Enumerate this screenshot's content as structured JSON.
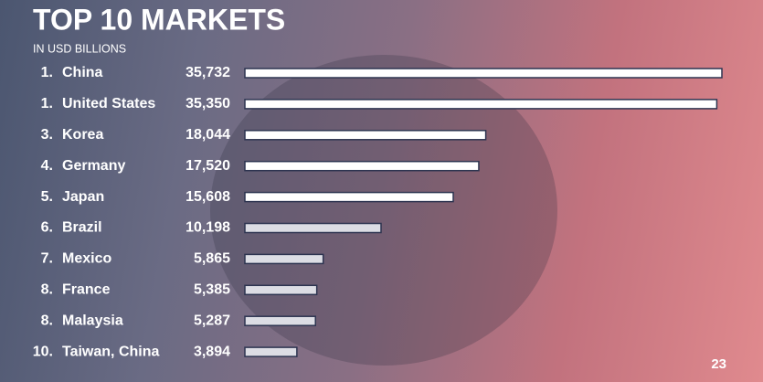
{
  "chart_data": {
    "type": "hbar",
    "title": "TOP 10 MARKETS",
    "subtitle": "IN USD BILLIONS",
    "ranks": [
      "1.",
      "1.",
      "3.",
      "4.",
      "5.",
      "6.",
      "7.",
      "8.",
      "8.",
      "10."
    ],
    "categories": [
      "China",
      "United States",
      "Korea",
      "Germany",
      "Japan",
      "Brazil",
      "Mexico",
      "France",
      "Malaysia",
      "Taiwan, China"
    ],
    "values": [
      35732,
      35350,
      18044,
      17520,
      15608,
      10198,
      5865,
      5385,
      5287,
      3894
    ],
    "value_labels": [
      "35,732",
      "35,350",
      "18,044",
      "17,520",
      "15,608",
      "10,198",
      "5,865",
      "5,385",
      "5,287",
      "3,894"
    ],
    "colors": [
      "#ffffff",
      "#ffffff",
      "#ffffff",
      "#ffffff",
      "#ffffff",
      "#dcdde4",
      "#dcdde4",
      "#dcdde4",
      "#dcdde4",
      "#dcdde4"
    ],
    "page_number": "23"
  }
}
